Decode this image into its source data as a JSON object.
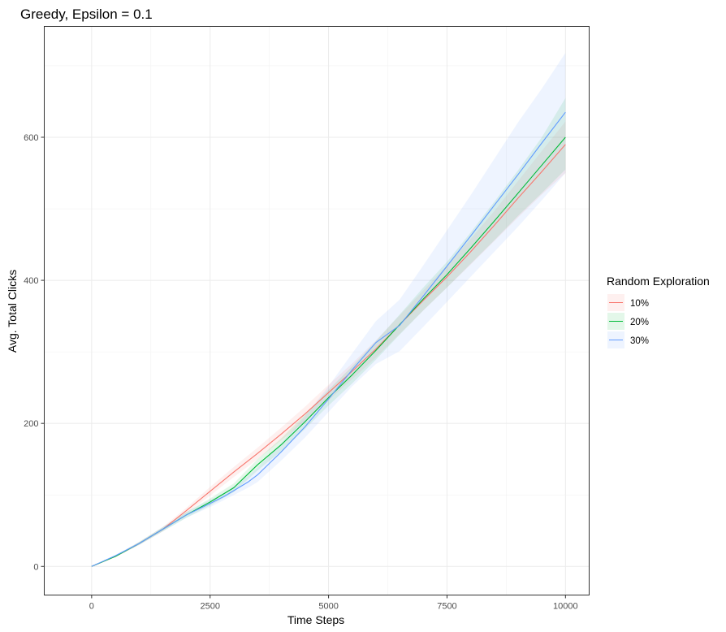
{
  "chart_data": {
    "type": "line",
    "title": "Greedy, Epsilon = 0.1",
    "xlabel": "Time Steps",
    "ylabel": "Avg. Total Clicks",
    "xlim": [
      -1000,
      10500
    ],
    "ylim": [
      -40,
      755
    ],
    "xticks": [
      0,
      2500,
      5000,
      7500,
      10000
    ],
    "xtick_labels": [
      "0",
      "2500",
      "5000",
      "7500",
      "10000"
    ],
    "yticks": [
      0,
      200,
      400,
      600
    ],
    "ytick_labels": [
      "0",
      "200",
      "400",
      "600"
    ],
    "grid": true,
    "legend": {
      "title": "Random Exploration",
      "position": "right"
    },
    "series": [
      {
        "name": "10%",
        "color": "#F8766D",
        "band_color": "#F8766D",
        "x": [
          0,
          500,
          1000,
          1500,
          2000,
          2500,
          3000,
          3500,
          4000,
          4500,
          5000,
          5500,
          6000,
          6500,
          7000,
          7500,
          8000,
          8500,
          9000,
          9500,
          10000
        ],
        "y": [
          0,
          14,
          32,
          52,
          78,
          105,
          132,
          158,
          185,
          213,
          243,
          273,
          304,
          338,
          372,
          405,
          440,
          477,
          515,
          552,
          590
        ],
        "lower": [
          0,
          13,
          30,
          49,
          74,
          99,
          125,
          150,
          176,
          203,
          232,
          262,
          292,
          325,
          358,
          390,
          422,
          455,
          488,
          520,
          550
        ],
        "upper": [
          0,
          15,
          34,
          55,
          82,
          111,
          139,
          166,
          194,
          223,
          254,
          284,
          316,
          351,
          386,
          421,
          458,
          497,
          539,
          581,
          622
        ]
      },
      {
        "name": "20%",
        "color": "#00BA38",
        "band_color": "#00BA38",
        "x": [
          0,
          500,
          1000,
          1500,
          2000,
          2500,
          3000,
          3500,
          4000,
          4500,
          5000,
          5500,
          6000,
          6500,
          7000,
          7500,
          8000,
          8500,
          9000,
          9500,
          10000
        ],
        "y": [
          0,
          14,
          32,
          52,
          72,
          90,
          110,
          142,
          170,
          202,
          236,
          268,
          302,
          338,
          374,
          408,
          445,
          483,
          522,
          561,
          600
        ],
        "lower": [
          0,
          13,
          30,
          49,
          68,
          85,
          104,
          134,
          161,
          192,
          225,
          256,
          289,
          324,
          358,
          390,
          423,
          456,
          490,
          522,
          555
        ],
        "upper": [
          0,
          15,
          34,
          55,
          76,
          95,
          116,
          150,
          179,
          212,
          247,
          280,
          315,
          352,
          390,
          426,
          467,
          510,
          554,
          600,
          655
        ]
      },
      {
        "name": "30%",
        "color": "#619CFF",
        "band_color": "#619CFF",
        "x": [
          0,
          500,
          1000,
          1500,
          2000,
          2500,
          2800,
          3300,
          3500,
          4000,
          4500,
          5000,
          5500,
          6000,
          6500,
          7000,
          7500,
          8000,
          8500,
          9000,
          9500,
          10000
        ],
        "y": [
          0,
          15,
          32,
          52,
          72,
          88,
          98,
          118,
          128,
          160,
          195,
          234,
          275,
          313,
          337,
          378,
          420,
          462,
          505,
          548,
          592,
          635
        ],
        "lower": [
          0,
          14,
          30,
          49,
          68,
          83,
          93,
          110,
          118,
          148,
          180,
          216,
          252,
          283,
          301,
          335,
          370,
          405,
          440,
          475,
          512,
          550
        ],
        "upper": [
          0,
          16,
          34,
          55,
          76,
          93,
          103,
          126,
          138,
          172,
          210,
          252,
          298,
          343,
          373,
          421,
          470,
          519,
          570,
          621,
          668,
          718
        ]
      }
    ]
  }
}
